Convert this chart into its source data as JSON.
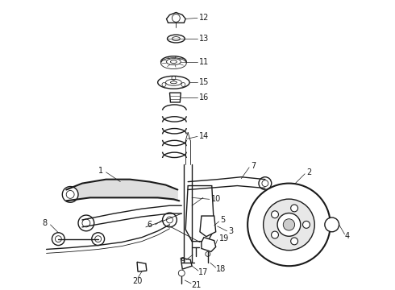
{
  "bg_color": "#ffffff",
  "line_color": "#1a1a1a",
  "gray": "#888888",
  "light_gray": "#cccccc",
  "font_size": 7.0,
  "figw": 4.9,
  "figh": 3.6,
  "dpi": 100
}
